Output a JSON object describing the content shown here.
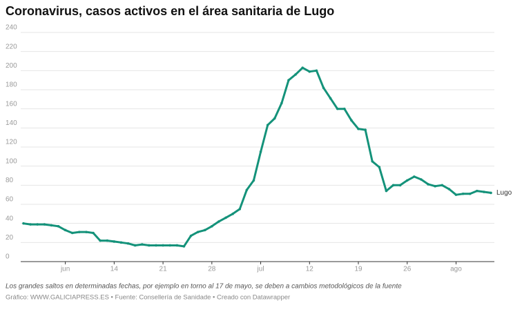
{
  "chart_data": {
    "type": "line",
    "title": "Coronavirus, casos activos en el área sanitaria de Lugo",
    "notes": "Los grandes saltos en determinadas fechas, por ejemplo en torno al 17 de mayo, se deben a cambios metodológicos de la fuente",
    "credits": "Gráfico: WWW.GALICIAPRESS.ES • Fuente: Consellería de Sanidade • Creado con Datawrapper",
    "x": [
      "06-01",
      "06-02",
      "06-03",
      "06-04",
      "06-05",
      "06-06",
      "06-07",
      "06-08",
      "06-09",
      "06-10",
      "06-11",
      "06-12",
      "06-13",
      "06-14",
      "06-15",
      "06-16",
      "06-17",
      "06-18",
      "06-19",
      "06-20",
      "06-21",
      "06-22",
      "06-23",
      "06-24",
      "06-25",
      "06-26",
      "06-27",
      "06-28",
      "06-29",
      "06-30",
      "07-01",
      "07-02",
      "07-03",
      "07-04",
      "07-05",
      "07-06",
      "07-07",
      "07-08",
      "07-09",
      "07-10",
      "07-11",
      "07-12",
      "07-13",
      "07-14",
      "07-15",
      "07-16",
      "07-17",
      "07-18",
      "07-19",
      "07-20",
      "07-21",
      "07-22",
      "07-23",
      "07-24",
      "07-25",
      "07-26",
      "07-27",
      "07-28",
      "07-29",
      "07-30",
      "07-31",
      "08-01",
      "08-02",
      "08-03",
      "08-04",
      "08-05",
      "08-06",
      "08-07"
    ],
    "series": [
      {
        "name": "Lugo",
        "color": "#14927a",
        "values": [
          40,
          39,
          39,
          39,
          38,
          37,
          33,
          30,
          31,
          31,
          30,
          22,
          22,
          21,
          20,
          19,
          17,
          18,
          17,
          17,
          17,
          17,
          17,
          16,
          27,
          31,
          33,
          37,
          42,
          46,
          50,
          55,
          75,
          85,
          115,
          143,
          150,
          166,
          190,
          196,
          203,
          199,
          200,
          182,
          171,
          160,
          160,
          148,
          139,
          138,
          105,
          99,
          74,
          80,
          80,
          85,
          89,
          86,
          81,
          79,
          80,
          76,
          70,
          71,
          71,
          74,
          73,
          72
        ]
      }
    ],
    "xlim": [
      "06-01",
      "08-07"
    ],
    "xticks": [
      {
        "value": "06-07",
        "label": "jun"
      },
      {
        "value": "06-14",
        "label": "14"
      },
      {
        "value": "06-21",
        "label": "21"
      },
      {
        "value": "06-28",
        "label": "28"
      },
      {
        "value": "07-05",
        "label": "jul"
      },
      {
        "value": "07-12",
        "label": "12"
      },
      {
        "value": "07-19",
        "label": "19"
      },
      {
        "value": "07-26",
        "label": "26"
      },
      {
        "value": "08-02",
        "label": "ago"
      }
    ],
    "ylim": [
      0,
      240
    ],
    "yticks": [
      0,
      20,
      40,
      60,
      80,
      100,
      120,
      140,
      160,
      180,
      200,
      220,
      240
    ],
    "grid": true
  }
}
